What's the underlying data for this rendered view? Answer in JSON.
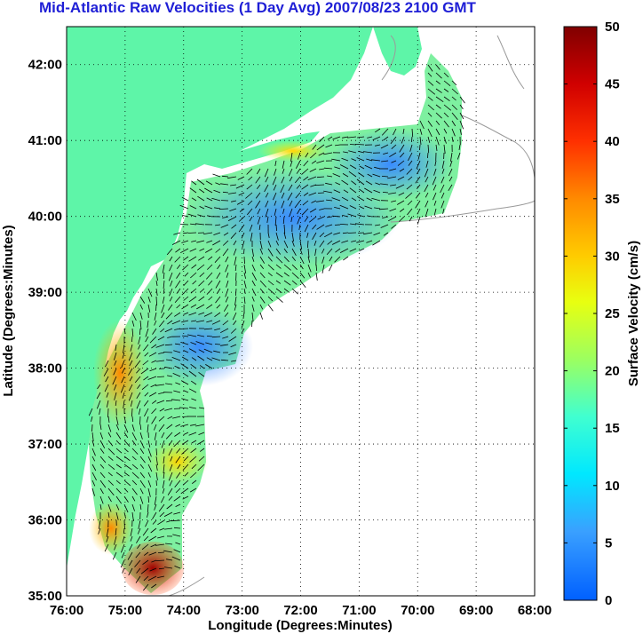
{
  "title": "Mid-Atlantic Raw Velocities (1 Day Avg) 2007/08/23 2100 GMT",
  "map": {
    "xlabel": "Longitude (Degrees:Minutes)",
    "ylabel": "Latitude (Degrees:Minutes)",
    "x_ticks": [
      "76:00",
      "75:00",
      "74:00",
      "73:00",
      "72:00",
      "71:00",
      "70:00",
      "69:00",
      "68:00"
    ],
    "y_ticks": [
      "42:00",
      "41:00",
      "40:00",
      "39:00",
      "38:00",
      "37:00",
      "36:00",
      "35:00"
    ],
    "lon_range": [
      -76,
      -68
    ],
    "lat_range": [
      35,
      42.5
    ],
    "grid": "dotted",
    "land_color": "#5ef5a8",
    "contour_color": "#9a9a9a",
    "vector_color": "#000000"
  },
  "colorbar": {
    "label": "Surface Velocity (cm/s)",
    "min": 0,
    "max": 50,
    "ticks": [
      "50",
      "45",
      "40",
      "35",
      "30",
      "25",
      "20",
      "15",
      "10",
      "5",
      "0"
    ],
    "colormap": "jet"
  }
}
